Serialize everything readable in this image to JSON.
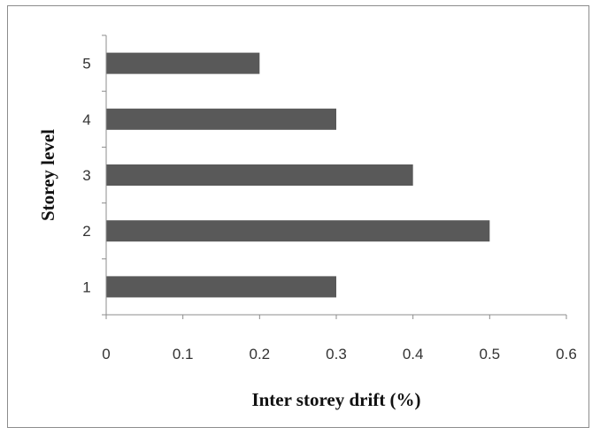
{
  "chart_data": {
    "type": "bar",
    "orientation": "horizontal",
    "categories": [
      "1",
      "2",
      "3",
      "4",
      "5"
    ],
    "values": [
      0.3,
      0.5,
      0.4,
      0.3,
      0.2
    ],
    "title": "",
    "xlabel": "Inter storey drift (%)",
    "ylabel": "Storey level",
    "xlim": [
      0,
      0.6
    ],
    "xticks": [
      "0",
      "0.1",
      "0.2",
      "0.3",
      "0.4",
      "0.5",
      "0.6"
    ],
    "grid": false,
    "legend": "none",
    "bar_color": "#595959"
  }
}
